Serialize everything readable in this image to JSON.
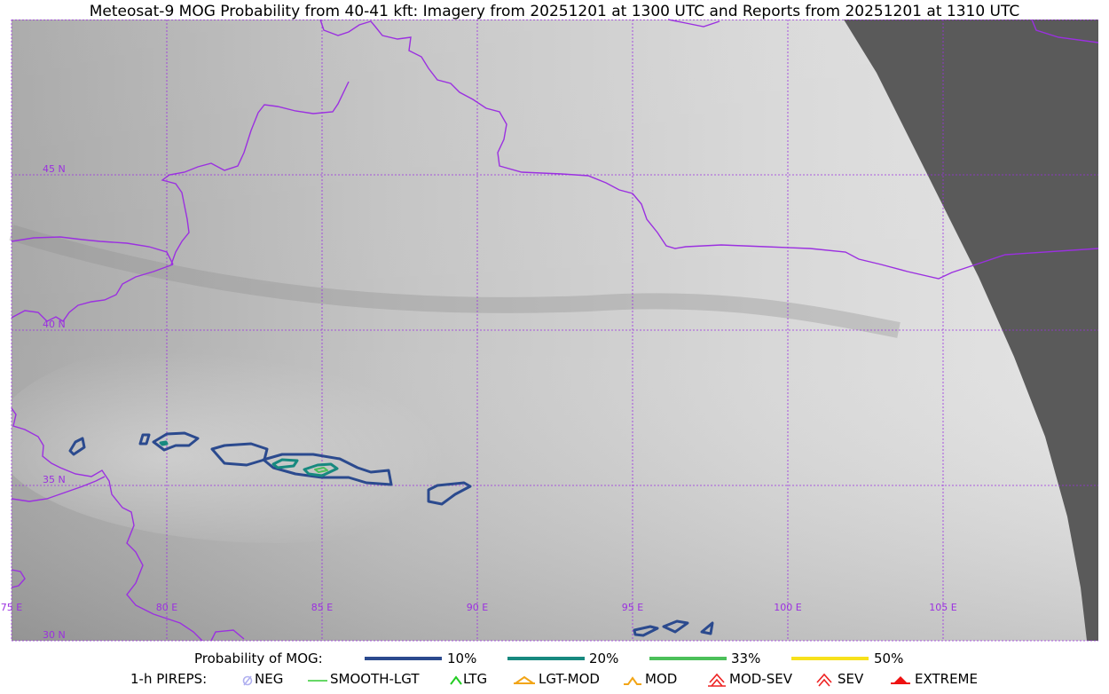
{
  "title": "Meteosat-9 MOG Probability from 40-41 kft: Imagery from 20251201 at 1300 UTC and Reports from 20251201 at 1310 UTC",
  "map": {
    "lat_labels": [
      "45 N",
      "40 N",
      "35 N",
      "30 N"
    ],
    "lon_labels": [
      "75 E",
      "80 E",
      "85 E",
      "90 E",
      "95 E",
      "100 E",
      "105 E"
    ],
    "grid_color": "#9b30e0",
    "border_color": "#9b30e0",
    "no_data_color": "#5a5a5a"
  },
  "legend_probability": {
    "label": "Probability of MOG:",
    "items": [
      {
        "label": "10%",
        "color": "#2b4a8e"
      },
      {
        "label": "20%",
        "color": "#17897f"
      },
      {
        "label": "33%",
        "color": "#4cc05a"
      },
      {
        "label": "50%",
        "color": "#f7e11b"
      }
    ]
  },
  "legend_pireps": {
    "label": "1-h PIREPS:",
    "items": [
      {
        "label": "NEG",
        "icon": "neg-icon",
        "color": "#b0b0f0"
      },
      {
        "label": "SMOOTH-LGT",
        "icon": "smooth-lgt-icon",
        "color": "#33cc33"
      },
      {
        "label": "LTG",
        "icon": "ltg-icon",
        "color": "#22cc22"
      },
      {
        "label": "LGT-MOD",
        "icon": "lgt-mod-icon",
        "color": "#f2a516"
      },
      {
        "label": "MOD",
        "icon": "mod-icon",
        "color": "#f2a516"
      },
      {
        "label": "MOD-SEV",
        "icon": "mod-sev-icon",
        "color": "#ee2222"
      },
      {
        "label": "SEV",
        "icon": "sev-icon",
        "color": "#ee2222"
      },
      {
        "label": "EXTREME",
        "icon": "extreme-icon",
        "color": "#ee1111"
      }
    ]
  }
}
